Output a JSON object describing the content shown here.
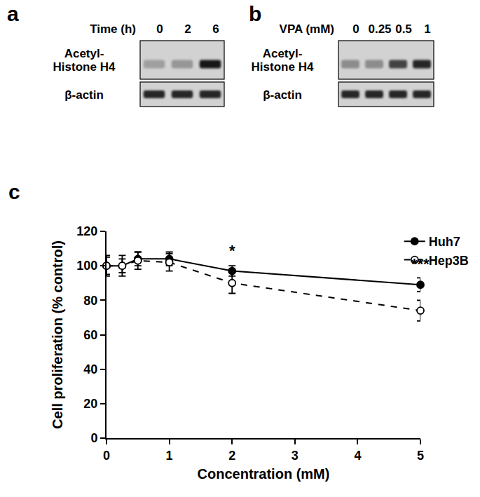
{
  "blots": [
    {
      "panel_label": "a",
      "condition_label": "Time (h)",
      "lanes": [
        "0",
        "2",
        "6"
      ],
      "rows": [
        {
          "label": "Acetyl-Histone H4",
          "band_intensity": [
            0.25,
            0.3,
            1.0
          ]
        },
        {
          "label": "β-actin",
          "band_intensity": [
            0.9,
            0.9,
            0.9
          ]
        }
      ]
    },
    {
      "panel_label": "b",
      "condition_label": "VPA (mM)",
      "lanes": [
        "0",
        "0.25",
        "0.5",
        "1"
      ],
      "rows": [
        {
          "label": "Acetyl-Histone H4",
          "band_intensity": [
            0.35,
            0.35,
            0.75,
            0.9
          ]
        },
        {
          "label": "β-actin",
          "band_intensity": [
            0.9,
            0.9,
            0.9,
            0.9
          ]
        }
      ]
    }
  ],
  "chart_data": {
    "panel_label": "c",
    "type": "line",
    "xlabel": "Concentration (mM)",
    "ylabel": "Cell proliferation (% control)",
    "x": [
      0,
      0.25,
      0.5,
      1,
      2,
      5
    ],
    "series": [
      {
        "name": "Huh7",
        "color": "#000000",
        "marker": "filled",
        "line_style": "solid",
        "values": [
          100,
          100,
          104,
          104,
          97,
          89
        ],
        "errors": [
          5,
          4,
          4,
          4,
          3,
          4
        ]
      },
      {
        "name": "Hep3B",
        "color": "#000000",
        "marker": "open",
        "line_style": "dashed",
        "values": [
          100,
          100,
          103,
          102,
          90,
          74
        ],
        "errors": [
          6,
          6,
          5,
          5,
          6,
          6
        ]
      }
    ],
    "xlim": [
      0,
      5
    ],
    "xticks": [
      0,
      1,
      2,
      3,
      4,
      5
    ],
    "ylim": [
      0,
      120
    ],
    "yticks": [
      0,
      20,
      40,
      60,
      80,
      100,
      120
    ],
    "grid": false,
    "legend": "top right",
    "annotations": [
      {
        "text": "*",
        "x": 2,
        "y": 103
      },
      {
        "text": "***",
        "x": 5,
        "y": 95
      }
    ]
  }
}
